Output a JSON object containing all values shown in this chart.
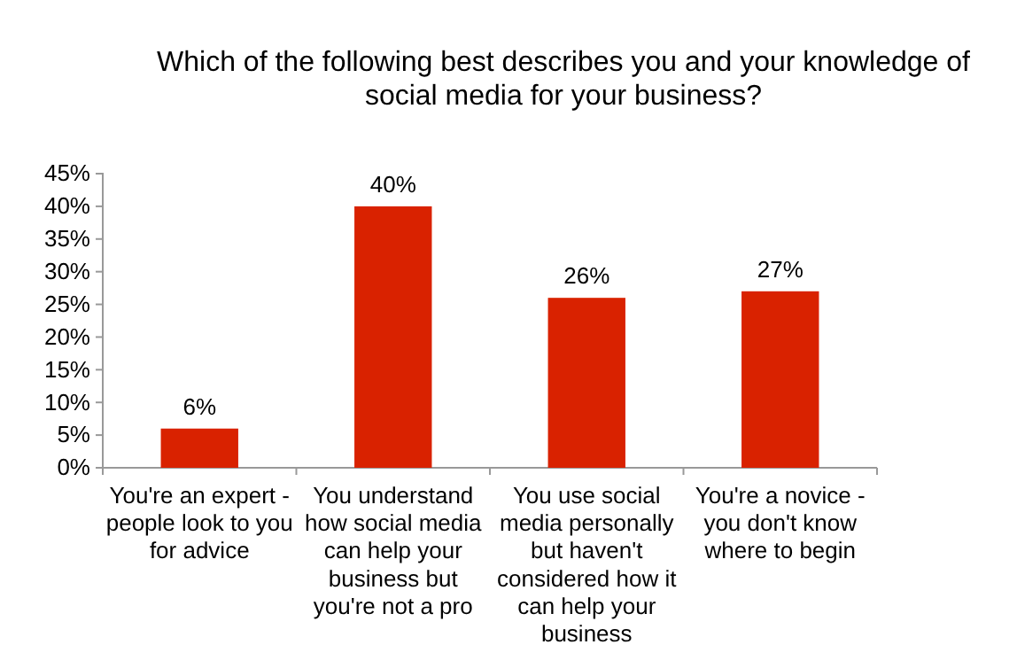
{
  "chart_data": {
    "type": "bar",
    "title": "Which of the following best describes you and your knowledge of social media for your business?",
    "categories": [
      "You're an expert - people look to you for advice",
      "You understand how social media can help your business but you're not a pro",
      "You use social media personally but haven't considered how it can help your business",
      "You're a novice - you don't know where to begin"
    ],
    "values": [
      6,
      40,
      26,
      27
    ],
    "value_labels": [
      "6%",
      "40%",
      "26%",
      "27%"
    ],
    "color": "#d92200",
    "ylim": [
      0,
      45
    ],
    "yticks": [
      {
        "value": 0,
        "label": "0%"
      },
      {
        "value": 5,
        "label": "5%"
      },
      {
        "value": 10,
        "label": "10%"
      },
      {
        "value": 15,
        "label": "15%"
      },
      {
        "value": 20,
        "label": "20%"
      },
      {
        "value": 25,
        "label": "25%"
      },
      {
        "value": 30,
        "label": "30%"
      },
      {
        "value": 35,
        "label": "35%"
      },
      {
        "value": 40,
        "label": "40%"
      },
      {
        "value": 45,
        "label": "45%"
      }
    ],
    "grid": false
  }
}
